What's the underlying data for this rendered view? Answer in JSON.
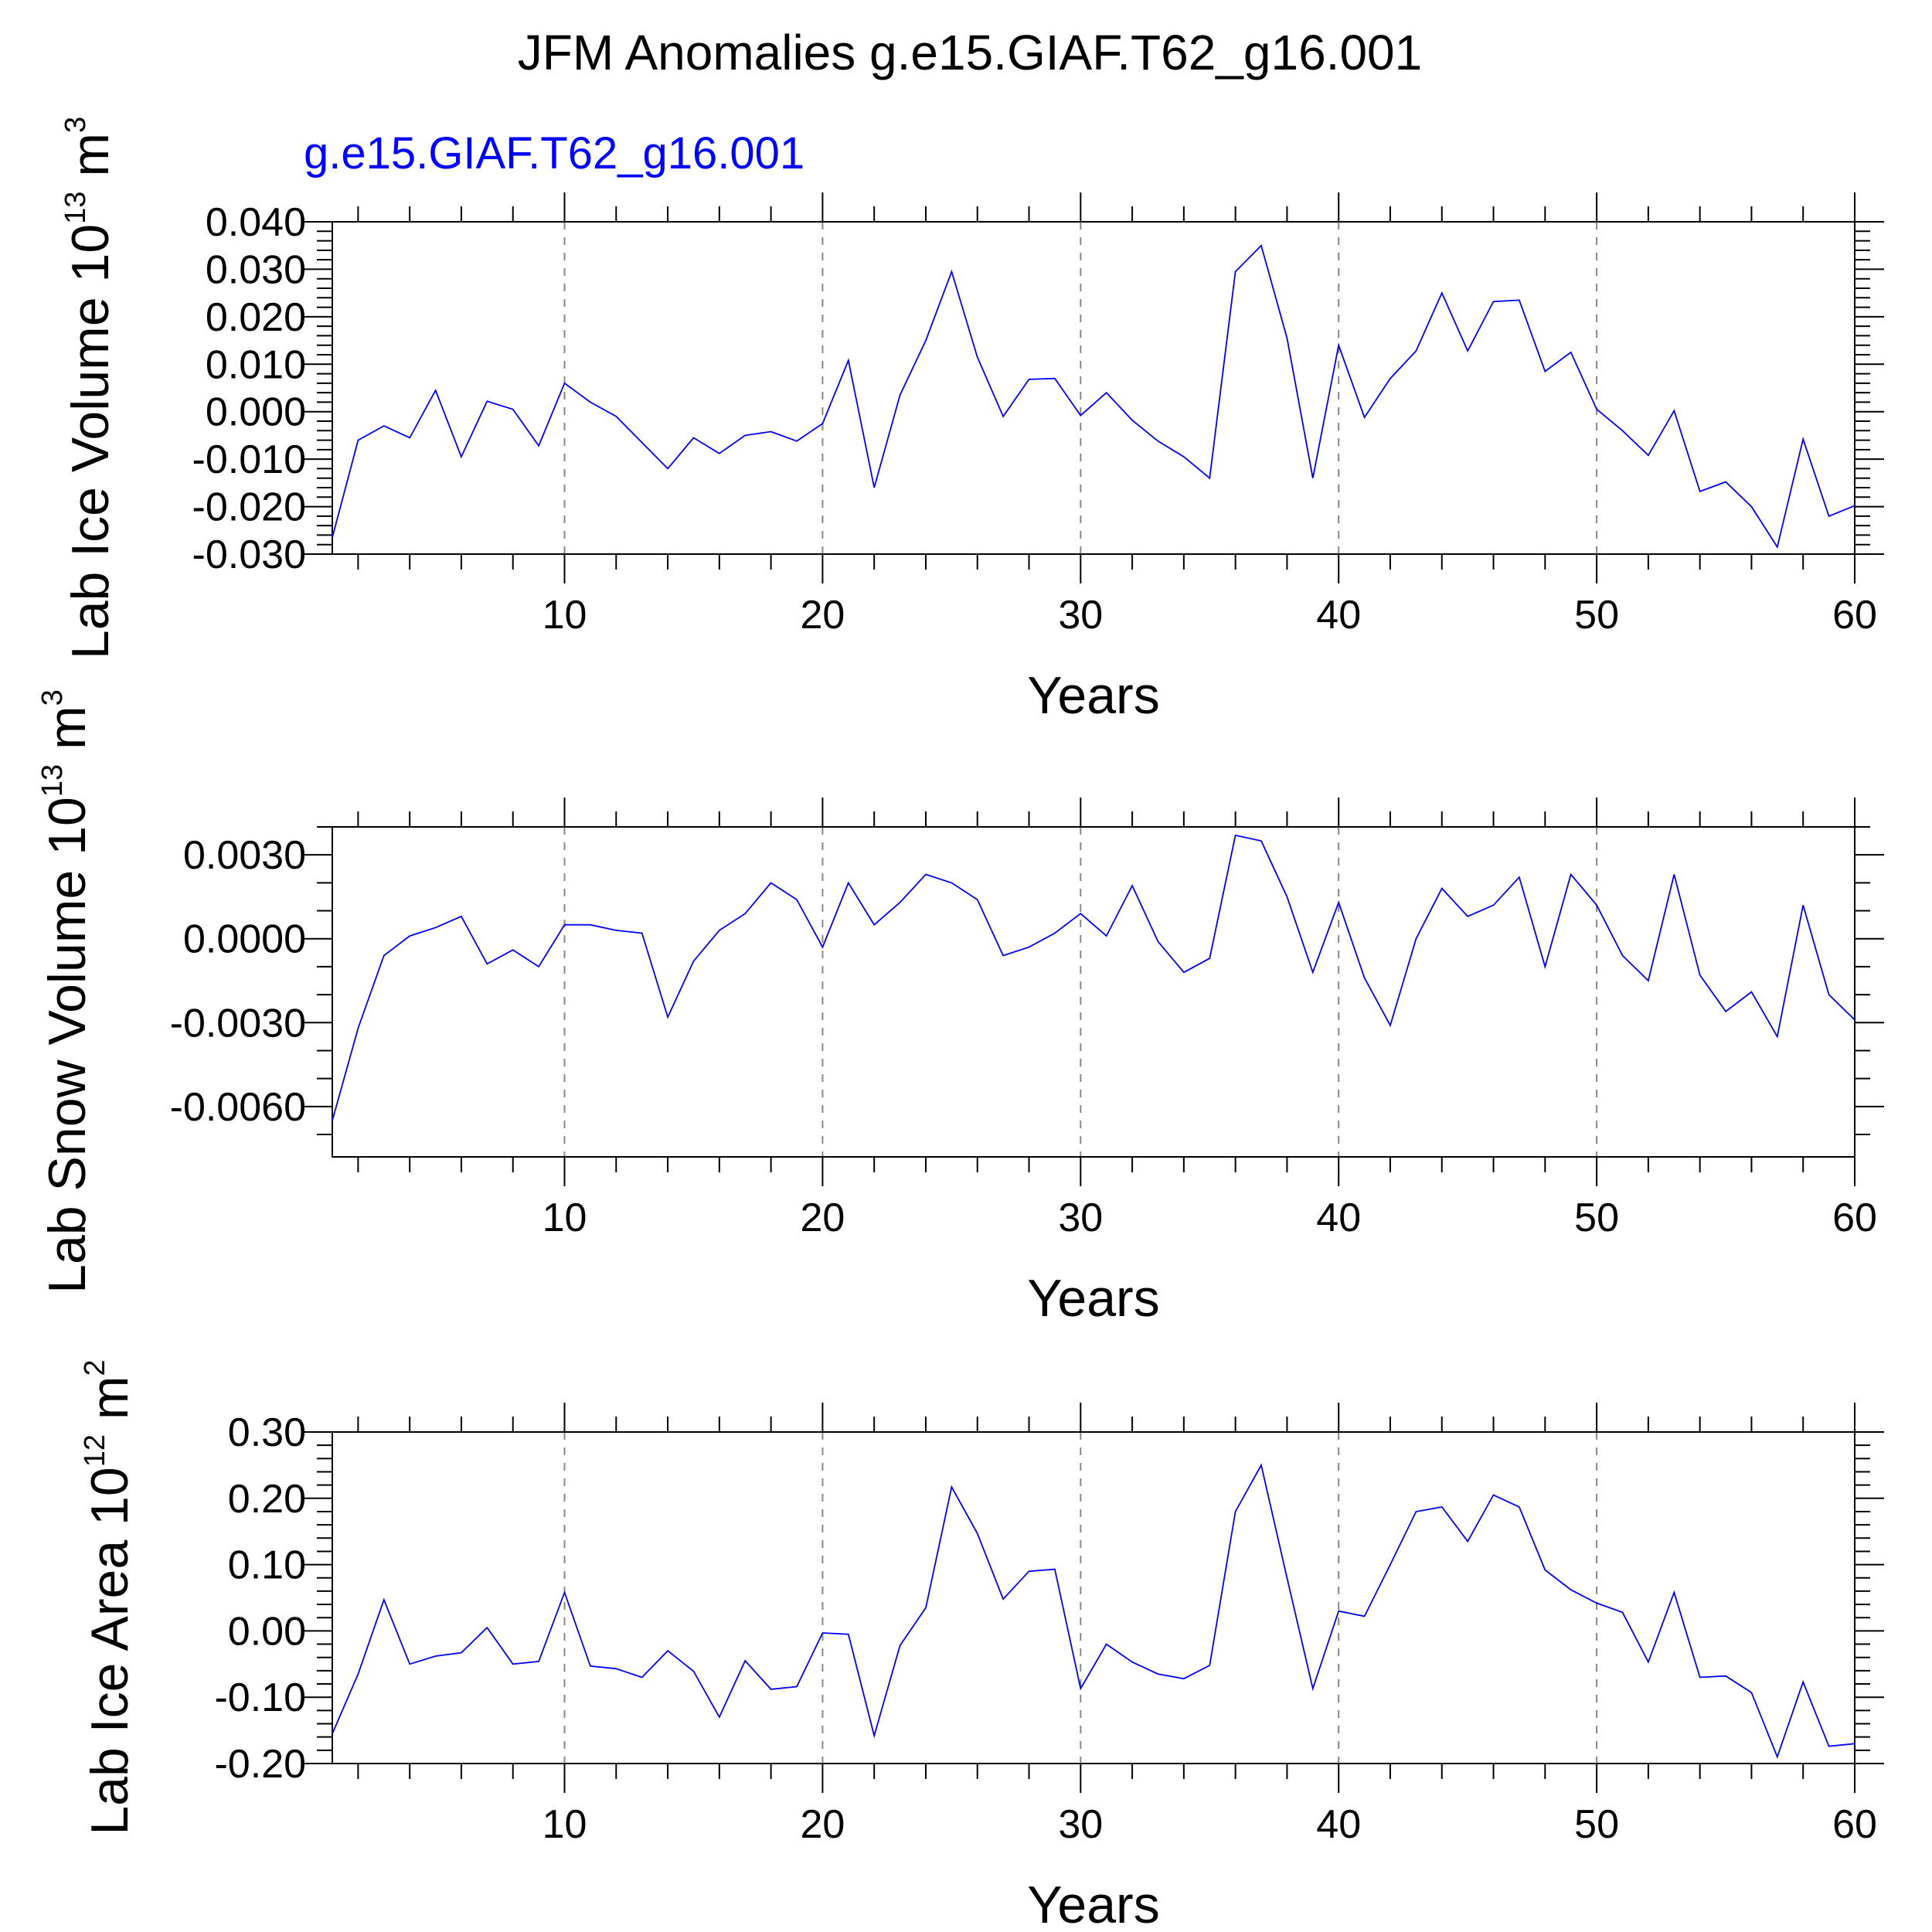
{
  "title": "JFM Anomalies g.e15.GIAF.T62_g16.001",
  "chart_data": [
    {
      "type": "line",
      "title": "JFM Anomalies g.e15.GIAF.T62_g16.001",
      "subtitle": "g.e15.GIAF.T62_g16.001",
      "xlabel": "Years",
      "ylabel": {
        "base": "Lab Ice Volume 10",
        "exp1": "13",
        "mid": " m",
        "exp2": "3"
      },
      "xlim": [
        1,
        60
      ],
      "ylim": [
        -0.03,
        0.04
      ],
      "xticks": [
        "10",
        "20",
        "30",
        "40",
        "50",
        "60"
      ],
      "yticks": [
        "-0.030",
        "-0.020",
        "-0.010",
        "0.000",
        "0.010",
        "0.020",
        "0.030",
        "0.040"
      ],
      "series": [
        {
          "name": "g.e15.GIAF.T62_g16.001",
          "color": "#0000ff",
          "x": [
            1,
            2,
            3,
            4,
            5,
            6,
            7,
            8,
            9,
            10,
            11,
            12,
            13,
            14,
            15,
            16,
            17,
            18,
            19,
            20,
            21,
            22,
            23,
            24,
            25,
            26,
            27,
            28,
            29,
            30,
            31,
            32,
            33,
            34,
            35,
            36,
            37,
            38,
            39,
            40,
            41,
            42,
            43,
            44,
            45,
            46,
            47,
            48,
            49,
            50,
            51,
            52,
            53,
            54,
            55,
            56,
            57,
            58,
            59,
            60
          ],
          "values": [
            -0.0265,
            -0.006,
            -0.003,
            -0.0055,
            0.0045,
            -0.0095,
            0.0022,
            0.0005,
            -0.0072,
            0.006,
            0.002,
            -0.001,
            -0.0065,
            -0.012,
            -0.0055,
            -0.0088,
            -0.005,
            -0.0042,
            -0.0062,
            -0.0025,
            0.0108,
            -0.016,
            0.0035,
            0.015,
            0.0295,
            0.0115,
            -0.001,
            0.0068,
            0.007,
            -0.0008,
            0.004,
            -0.0018,
            -0.0062,
            -0.0095,
            -0.014,
            0.0295,
            0.035,
            0.0155,
            -0.014,
            0.014,
            -0.0012,
            0.007,
            0.0128,
            0.025,
            0.0128,
            0.0232,
            0.0235,
            0.0085,
            0.0125,
            0.0005,
            -0.004,
            -0.0092,
            0.0002,
            -0.0168,
            -0.0148,
            -0.02,
            -0.0285,
            -0.0058,
            -0.022,
            -0.0198
          ]
        }
      ]
    },
    {
      "type": "line",
      "xlabel": "Years",
      "ylabel": {
        "base": "Lab Snow Volume 10",
        "exp1": "13",
        "mid": " m",
        "exp2": "3"
      },
      "xlim": [
        1,
        60
      ],
      "ylim": [
        -0.0078,
        0.004
      ],
      "xticks": [
        "10",
        "20",
        "30",
        "40",
        "50",
        "60"
      ],
      "yticks": [
        "-0.0060",
        "-0.0030",
        "0.0000",
        "0.0030"
      ],
      "series": [
        {
          "name": "g.e15.GIAF.T62_g16.001",
          "color": "#0000ff",
          "x": [
            1,
            2,
            3,
            4,
            5,
            6,
            7,
            8,
            9,
            10,
            11,
            12,
            13,
            14,
            15,
            16,
            17,
            18,
            19,
            20,
            21,
            22,
            23,
            24,
            25,
            26,
            27,
            28,
            29,
            30,
            31,
            32,
            33,
            34,
            35,
            36,
            37,
            38,
            39,
            40,
            41,
            42,
            43,
            44,
            45,
            46,
            47,
            48,
            49,
            50,
            51,
            52,
            53,
            54,
            55,
            56,
            57,
            58,
            59,
            60
          ],
          "values": [
            -0.0065,
            -0.0032,
            -0.0006,
            0.0001,
            0.0004,
            0.0008,
            -0.0009,
            -0.0004,
            -0.001,
            0.0005,
            0.0005,
            0.0003,
            0.0002,
            -0.0028,
            -0.0008,
            0.0003,
            0.0009,
            0.002,
            0.0014,
            -0.0003,
            0.002,
            0.0005,
            0.0013,
            0.0023,
            0.002,
            0.0014,
            -0.0006,
            -0.0003,
            0.0002,
            0.0009,
            0.0001,
            0.0019,
            -0.0001,
            -0.0012,
            -0.0007,
            0.0037,
            0.0035,
            0.0015,
            -0.0012,
            0.0013,
            -0.0014,
            -0.0031,
            0.0,
            0.0018,
            0.0008,
            0.0012,
            0.0022,
            -0.001,
            0.0023,
            0.0012,
            -0.0006,
            -0.0015,
            0.0023,
            -0.0013,
            -0.0026,
            -0.0019,
            -0.0035,
            0.0012,
            -0.002,
            -0.0029
          ]
        }
      ]
    },
    {
      "type": "line",
      "xlabel": "Years",
      "ylabel": {
        "base": "Lab Ice Area 10",
        "exp1": "12",
        "mid": " m",
        "exp2": "2"
      },
      "xlim": [
        1,
        60
      ],
      "ylim": [
        -0.2,
        0.3
      ],
      "xticks": [
        "10",
        "20",
        "30",
        "40",
        "50",
        "60"
      ],
      "yticks": [
        "-0.20",
        "-0.10",
        "0.00",
        "0.10",
        "0.20",
        "0.30"
      ],
      "series": [
        {
          "name": "g.e15.GIAF.T62_g16.001",
          "color": "#0000ff",
          "x": [
            1,
            2,
            3,
            4,
            5,
            6,
            7,
            8,
            9,
            10,
            11,
            12,
            13,
            14,
            15,
            16,
            17,
            18,
            19,
            20,
            21,
            22,
            23,
            24,
            25,
            26,
            27,
            28,
            29,
            30,
            31,
            32,
            33,
            34,
            35,
            36,
            37,
            38,
            39,
            40,
            41,
            42,
            43,
            44,
            45,
            46,
            47,
            48,
            49,
            50,
            51,
            52,
            53,
            54,
            55,
            56,
            57,
            58,
            59,
            60
          ],
          "values": [
            -0.155,
            -0.065,
            0.047,
            -0.05,
            -0.038,
            -0.033,
            0.005,
            -0.05,
            -0.046,
            0.058,
            -0.053,
            -0.057,
            -0.07,
            -0.03,
            -0.061,
            -0.13,
            -0.045,
            -0.088,
            -0.084,
            -0.003,
            -0.005,
            -0.158,
            -0.022,
            0.035,
            0.217,
            0.147,
            0.048,
            0.09,
            0.093,
            -0.087,
            -0.02,
            -0.047,
            -0.065,
            -0.072,
            -0.052,
            0.18,
            0.25,
            0.08,
            -0.087,
            0.03,
            0.022,
            0.1,
            0.18,
            0.187,
            0.135,
            0.205,
            0.187,
            0.092,
            0.062,
            0.042,
            0.028,
            -0.047,
            0.058,
            -0.07,
            -0.068,
            -0.093,
            -0.19,
            -0.077,
            -0.174,
            -0.17
          ]
        }
      ]
    }
  ]
}
